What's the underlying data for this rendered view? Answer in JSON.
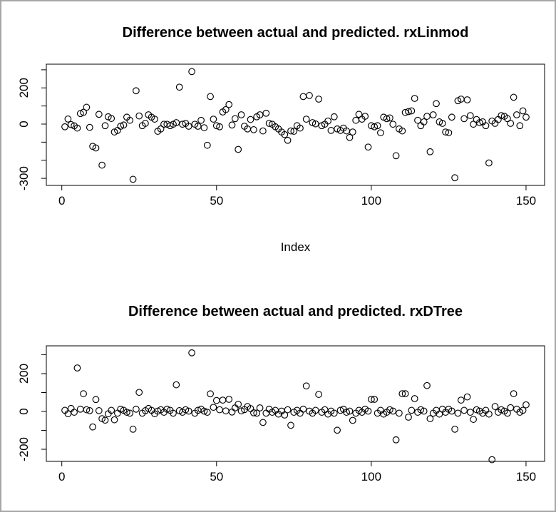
{
  "page": {
    "background": "#ffffff",
    "frame_color": "#a6a6a6",
    "foreground": "#000000"
  },
  "chart_data": [
    {
      "type": "scatter",
      "title": "Difference between actual and predicted. rxLinmod",
      "xlabel": "Index",
      "ylabel": "",
      "marker": "open-circle",
      "color": "#000000",
      "grid": false,
      "x_ticks": [
        0,
        50,
        100,
        150
      ],
      "x_tick_labels": [
        "0",
        "50",
        "100",
        "150"
      ],
      "y_ticks": [
        300,
        200,
        100,
        0,
        -100,
        -200,
        -300
      ],
      "y_tick_labels": [
        "",
        "200",
        "",
        "0",
        "",
        "",
        "-300"
      ],
      "xlim": [
        -5,
        156
      ],
      "ylim": [
        -339,
        331
      ],
      "x_range": [
        1,
        150
      ],
      "x_start": 1,
      "values": [
        -15,
        28,
        -3,
        -10,
        -22,
        58,
        65,
        93,
        -18,
        -123,
        -132,
        54,
        -227,
        -9,
        40,
        31,
        -44,
        -35,
        -12,
        -5,
        38,
        21,
        -305,
        184,
        45,
        -9,
        4,
        51,
        38,
        27,
        -40,
        -27,
        -1,
        -1,
        -9,
        -1,
        8,
        204,
        -1,
        4,
        -12,
        290,
        -1,
        -12,
        21,
        -20,
        -117,
        152,
        27,
        -9,
        -15,
        67,
        80,
        108,
        -5,
        30,
        -140,
        51,
        -12,
        -27,
        25,
        -31,
        40,
        51,
        -38,
        60,
        4,
        -1,
        -15,
        -27,
        -44,
        -58,
        -90,
        -38,
        -40,
        -9,
        -22,
        152,
        27,
        158,
        8,
        1,
        138,
        -9,
        -1,
        17,
        -35,
        40,
        -27,
        -35,
        -22,
        -38,
        -74,
        -44,
        21,
        54,
        27,
        43,
        -127,
        -9,
        -15,
        -9,
        -48,
        38,
        30,
        34,
        -1,
        -175,
        -27,
        -38,
        64,
        69,
        73,
        142,
        21,
        -9,
        12,
        43,
        -153,
        51,
        113,
        12,
        4,
        -44,
        -48,
        38,
        -297,
        129,
        138,
        30,
        134,
        47,
        -1,
        25,
        8,
        12,
        -9,
        -215,
        17,
        4,
        25,
        47,
        43,
        30,
        4,
        148,
        51,
        -9,
        73,
        38
      ]
    },
    {
      "type": "scatter",
      "title": "Difference between actual and predicted. rxDTree",
      "xlabel": "",
      "ylabel": "",
      "marker": "open-circle",
      "color": "#000000",
      "grid": false,
      "x_ticks": [
        0,
        50,
        100,
        150
      ],
      "x_tick_labels": [
        "0",
        "50",
        "100",
        "150"
      ],
      "y_ticks": [
        300,
        200,
        100,
        0,
        -100,
        -200
      ],
      "y_tick_labels": [
        "",
        "200",
        "",
        "0",
        "",
        "-200"
      ],
      "xlim": [
        -5,
        156
      ],
      "ylim": [
        -264,
        347
      ],
      "x_range": [
        1,
        150
      ],
      "x_start": 1,
      "values": [
        6,
        -12,
        16,
        -4,
        230,
        12,
        94,
        9,
        4,
        -82,
        63,
        4,
        -38,
        -46,
        -12,
        6,
        -44,
        -9,
        12,
        6,
        -4,
        -9,
        -94,
        12,
        101,
        -9,
        4,
        16,
        6,
        -12,
        2,
        9,
        -4,
        12,
        6,
        -9,
        141,
        4,
        -4,
        9,
        2,
        310,
        -9,
        6,
        12,
        2,
        -4,
        93,
        22,
        58,
        9,
        60,
        3,
        64,
        -3,
        19,
        38,
        3,
        10,
        26,
        15,
        -7,
        -9,
        19,
        -58,
        -9,
        12,
        -4,
        6,
        -14,
        2,
        -19,
        9,
        -73,
        -4,
        6,
        -9,
        12,
        135,
        2,
        -9,
        6,
        90,
        -4,
        9,
        -14,
        2,
        -9,
        -99,
        6,
        12,
        -4,
        2,
        -47,
        -9,
        6,
        -4,
        12,
        2,
        64,
        64,
        -9,
        6,
        -14,
        -4,
        9,
        2,
        -150,
        -9,
        94,
        94,
        -30,
        6,
        68,
        -4,
        9,
        2,
        137,
        -38,
        -9,
        6,
        -14,
        12,
        -4,
        12,
        2,
        -94,
        -9,
        60,
        6,
        77,
        -4,
        -42,
        9,
        2,
        -9,
        6,
        -14,
        -255,
        26,
        -4,
        9,
        2,
        -9,
        20,
        94,
        12,
        -4,
        6,
        35
      ]
    }
  ]
}
